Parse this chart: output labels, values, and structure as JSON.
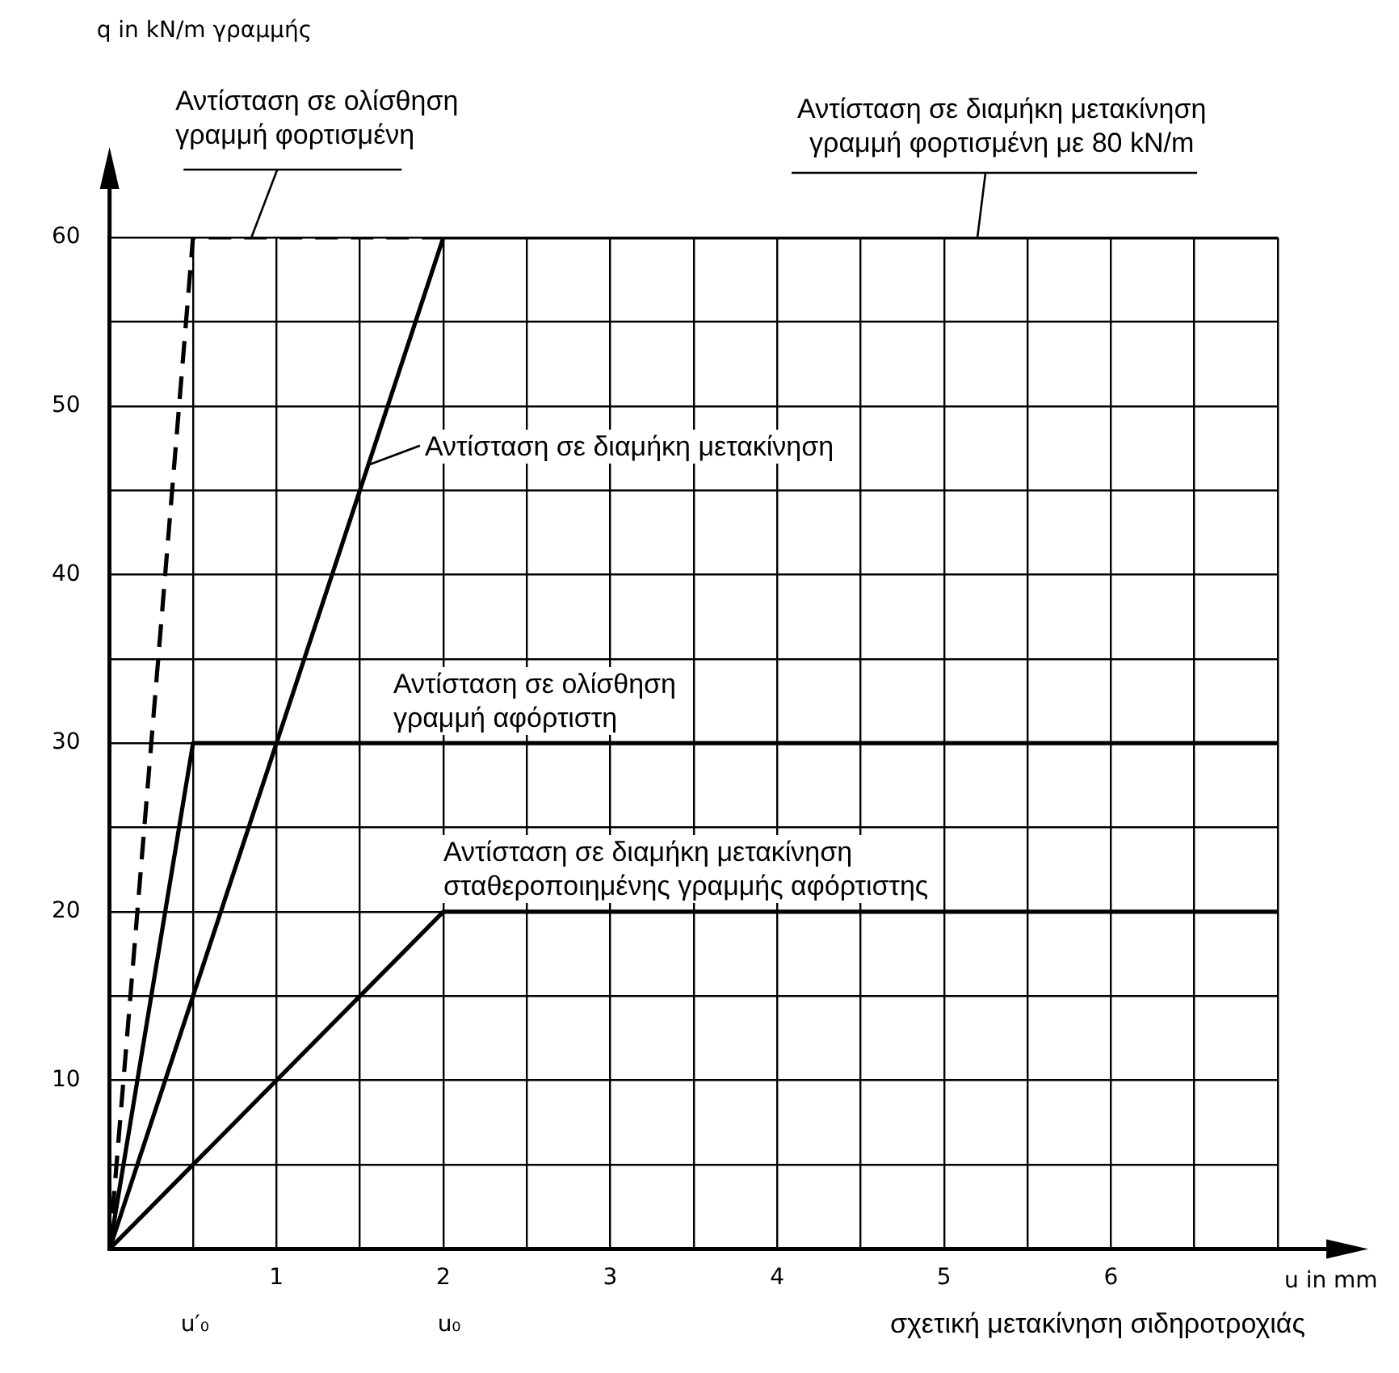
{
  "chart_data": {
    "type": "line",
    "xlabel": "u in mm",
    "xlim": [
      0,
      7
    ],
    "xticks": [
      {
        "value": 0,
        "label": null
      },
      {
        "value": 0.5,
        "label": null
      },
      1,
      {
        "value": 1.5,
        "label": null
      },
      2,
      {
        "value": 2.5,
        "label": null
      },
      3,
      {
        "value": 3.5,
        "label": null
      },
      4,
      {
        "value": 4.5,
        "label": null
      },
      5,
      {
        "value": 5.5,
        "label": null
      },
      6,
      {
        "value": 6.5,
        "label": null
      },
      {
        "value": 7,
        "label": null
      }
    ],
    "ylim": [
      0,
      60
    ],
    "yticks": [
      {
        "value": 0,
        "label": null
      },
      {
        "value": 5,
        "label": null
      },
      10,
      {
        "value": 15,
        "label": null
      },
      20,
      {
        "value": 25,
        "label": null
      },
      30,
      {
        "value": 35,
        "label": null
      },
      40,
      {
        "value": 45,
        "label": null
      },
      50,
      {
        "value": 55,
        "label": null
      },
      60
    ],
    "grid": true,
    "marker": "none",
    "line_style": "solid",
    "series": [
      {
        "color": "#000000",
        "line_style": "dashed",
        "x": [
          0,
          0.5,
          2
        ],
        "values": [
          0,
          60,
          60
        ]
      },
      {
        "color": "#000000",
        "x": [
          0,
          2,
          7
        ],
        "values": [
          0,
          60,
          60
        ]
      },
      {
        "color": "#000000",
        "x": [
          0,
          0.5,
          7
        ],
        "values": [
          0,
          30,
          30
        ]
      },
      {
        "color": "#000000",
        "x": [
          0,
          2,
          7
        ],
        "values": [
          0,
          20,
          20
        ]
      }
    ],
    "annotations": [
      {
        "text": "Αντίσταση σε ολίσθηση\nγραμμή φορτισμένη",
        "x": 0.85,
        "y": 60
      },
      {
        "text": "Αντίσταση σε διαμήκη μετακίνηση\nγραμμή φορτισμένη με 80 kN/m",
        "x": 5.2,
        "y": 60
      },
      {
        "text": "Αντίσταση σε διαμήκη μετακίνηση",
        "x": 1.55,
        "y": 46.5
      },
      {
        "text": "Αντίσταση σε ολίσθηση\nγραμμή αφόρτιστη",
        "x": 1.7,
        "y": 30
      },
      {
        "text": "Αντίσταση σε διαμήκη μετακίνηση\nσταθεροποιημένης γραμμής αφόρτιστης",
        "x": 2,
        "y": 20
      },
      "u′₀",
      "u₀",
      "q in kN/m γραμμής",
      "σχετική μετακίνηση σιδηροτροχιάς"
    ]
  }
}
